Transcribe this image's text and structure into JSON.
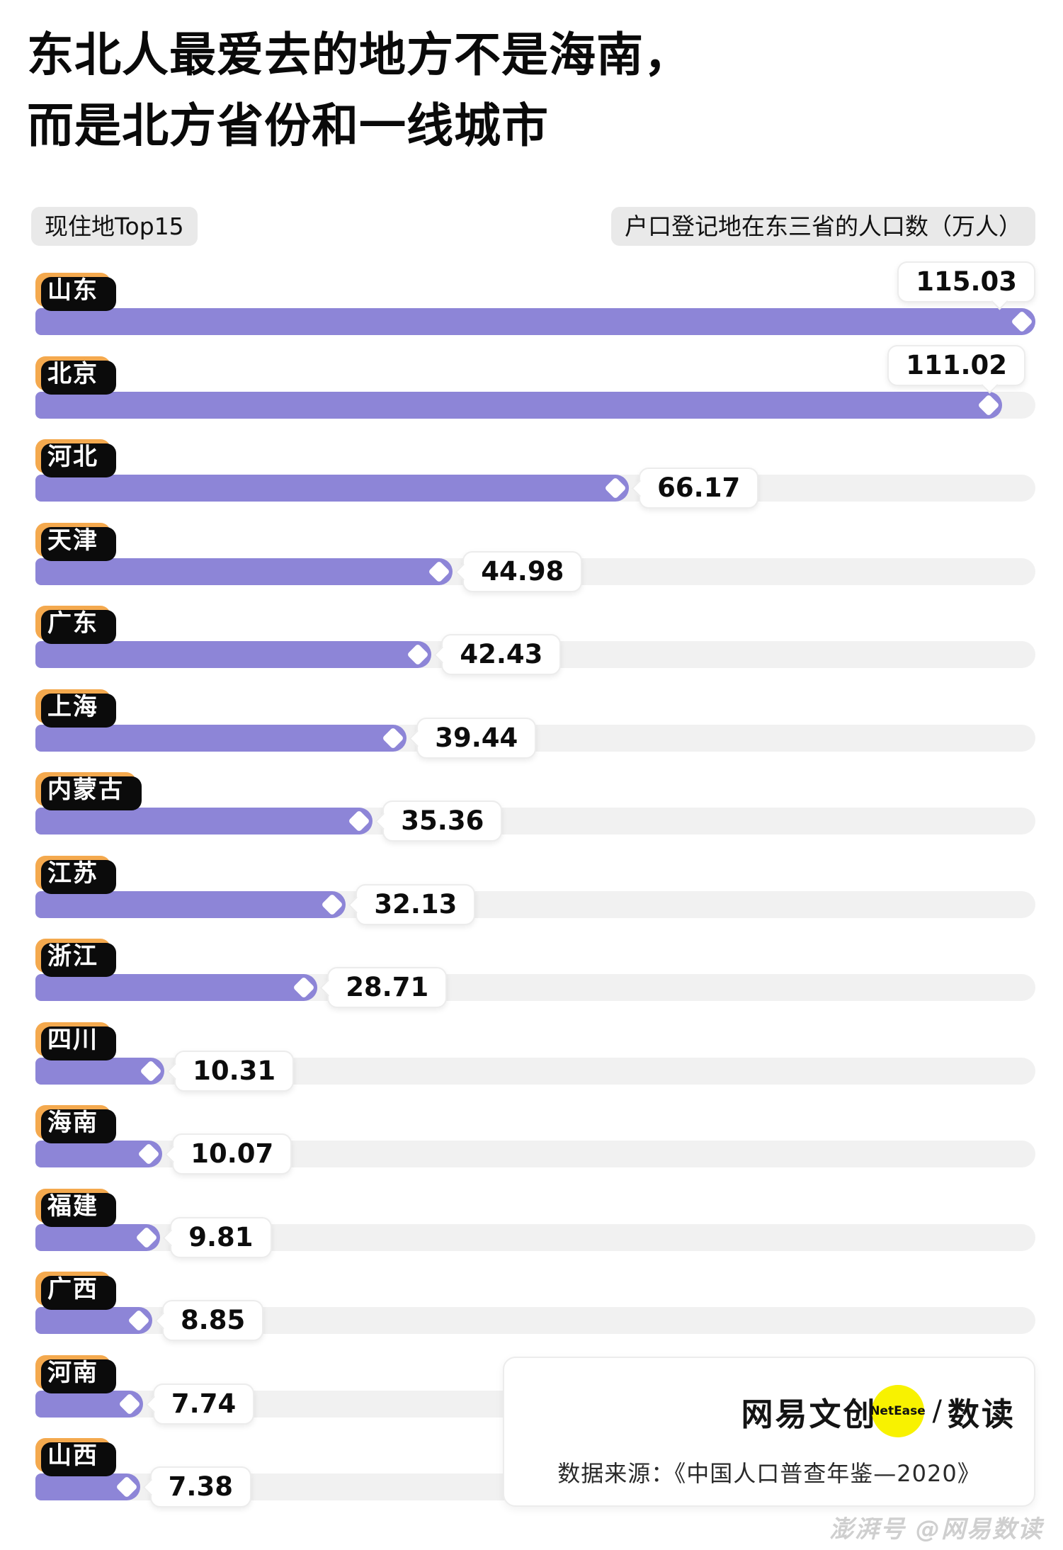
{
  "title": {
    "line1": "东北人最爱去的地方不是海南，",
    "line2": "而是北方省份和一线城市"
  },
  "header": {
    "left_chip": "现住地Top15",
    "right_chip": "户口登记地在东三省的人口数（万人）"
  },
  "chart_data": {
    "type": "bar",
    "orientation": "horizontal",
    "title": "东北人最爱去的地方不是海南，而是北方省份和一线城市",
    "xlabel": "户口登记地在东三省的人口数（万人）",
    "ylabel": "现住地Top15",
    "unit": "万人",
    "xlim": [
      0,
      115.03
    ],
    "grid": false,
    "legend_position": "none",
    "categories": [
      "山东",
      "北京",
      "河北",
      "天津",
      "广东",
      "上海",
      "内蒙古",
      "江苏",
      "浙江",
      "四川",
      "海南",
      "福建",
      "广西",
      "河南",
      "山西"
    ],
    "values": [
      115.03,
      111.02,
      66.17,
      44.98,
      42.43,
      39.44,
      35.36,
      32.13,
      28.71,
      10.31,
      10.07,
      9.81,
      8.85,
      7.74,
      7.38
    ],
    "value_label_position": [
      "top",
      "top",
      "right",
      "right",
      "right",
      "right",
      "right",
      "right",
      "right",
      "right",
      "right",
      "right",
      "right",
      "right",
      "right"
    ]
  },
  "colors": {
    "bar_purple": "#8D85D7",
    "chip_orange": "#F4A94E",
    "chip_shadow": "#0B0B0B",
    "track_gray": "#F1F1F1",
    "bubble_white": "#FFFFFF",
    "badge_yellow": "#F8F200",
    "text_black": "#0D0D0D",
    "watermark_gray": "#CFCFCF"
  },
  "footer": {
    "brand_left": "网易文创",
    "brand_badge": "NetEase",
    "brand_divider": "/",
    "brand_right": "数读",
    "source": "数据来源：《中国人口普查年鉴—2020》"
  },
  "watermark": "澎湃号 @网易数读"
}
